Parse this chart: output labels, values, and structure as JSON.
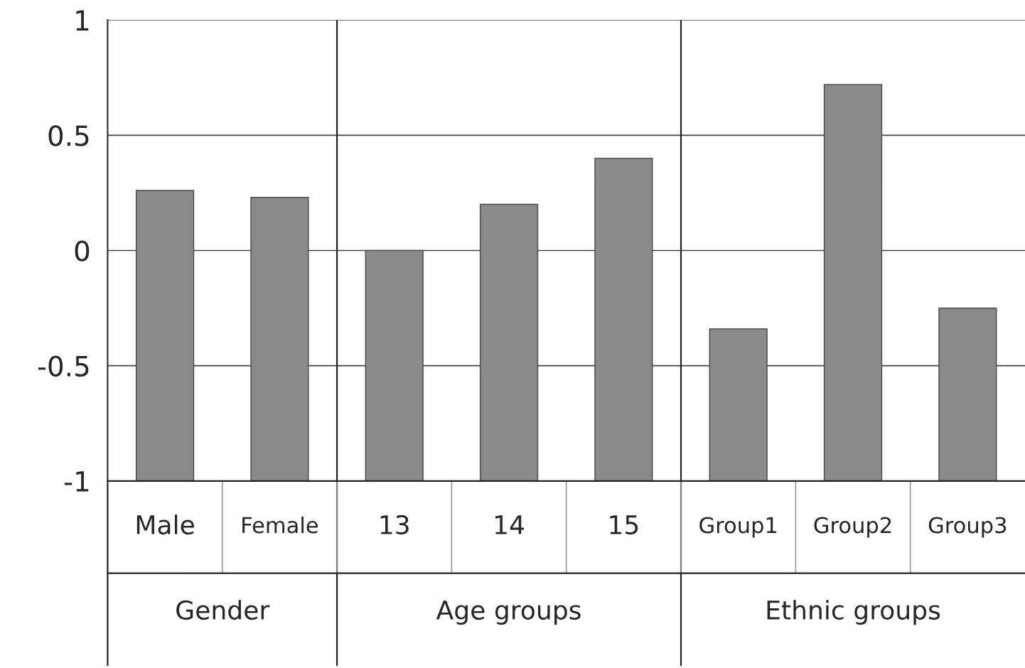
{
  "chart_data": {
    "type": "bar",
    "categories": [
      "Male",
      "Female",
      "13",
      "14",
      "15",
      "Group1",
      "Group2",
      "Group3"
    ],
    "values": [
      1.26,
      1.23,
      1.0,
      1.2,
      1.4,
      0.66,
      1.72,
      0.75
    ],
    "base": [
      -1,
      -1,
      -1,
      -1,
      -1,
      -1,
      -1,
      -1
    ],
    "color": "#8a8a8a",
    "ylim": [
      -1,
      1
    ],
    "yticks": [
      -1,
      -0.5,
      0,
      0.5,
      1
    ],
    "grid": "y",
    "annotations": [
      "Gender",
      "Age groups",
      "Ethnic groups"
    ]
  }
}
